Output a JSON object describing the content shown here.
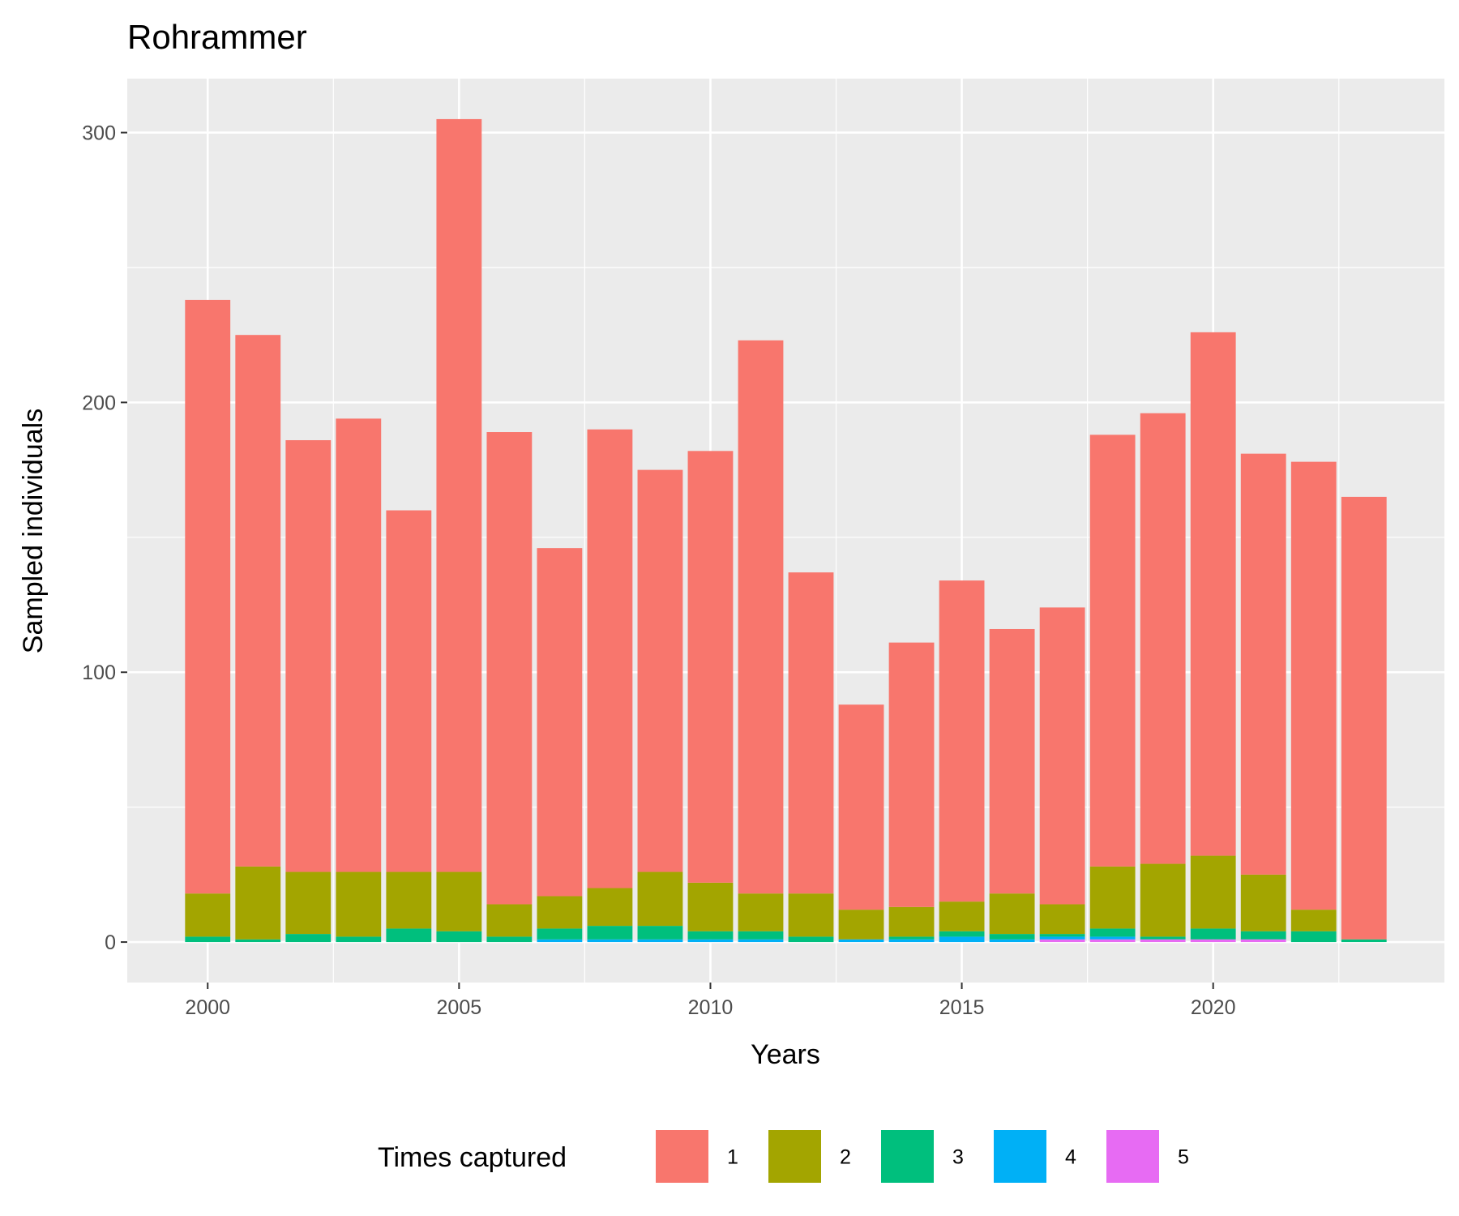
{
  "chart_data": {
    "type": "bar",
    "stacked": true,
    "title": "Rohrammer",
    "xlabel": "Years",
    "ylabel": "Sampled individuals",
    "xlim": [
      1998.4,
      2024.6
    ],
    "ylim": [
      -15,
      320
    ],
    "x_ticks": [
      2000,
      2005,
      2010,
      2015,
      2020
    ],
    "y_ticks": [
      0,
      100,
      200,
      300
    ],
    "grid": true,
    "legend_position": "bottom",
    "legend_title": "Times captured",
    "x": [
      2000,
      2001,
      2002,
      2003,
      2004,
      2005,
      2006,
      2007,
      2008,
      2009,
      2010,
      2011,
      2012,
      2013,
      2014,
      2015,
      2016,
      2017,
      2018,
      2019,
      2020,
      2021,
      2022,
      2023
    ],
    "series": [
      {
        "name": "1",
        "color": "#F8766D",
        "values": [
          220,
          197,
          160,
          168,
          134,
          279,
          175,
          129,
          170,
          149,
          160,
          205,
          119,
          76,
          98,
          119,
          98,
          110,
          160,
          167,
          194,
          156,
          166,
          164
        ]
      },
      {
        "name": "2",
        "color": "#A3A500",
        "values": [
          16,
          27,
          23,
          24,
          21,
          22,
          12,
          12,
          14,
          20,
          18,
          14,
          16,
          11,
          11,
          11,
          15,
          11,
          23,
          27,
          27,
          21,
          8,
          0
        ]
      },
      {
        "name": "3",
        "color": "#00BF7D",
        "values": [
          2,
          1,
          3,
          2,
          5,
          4,
          2,
          4,
          5,
          5,
          3,
          3,
          2,
          0,
          1,
          2,
          2,
          1,
          3,
          1,
          4,
          3,
          4,
          1
        ]
      },
      {
        "name": "4",
        "color": "#00B0F6",
        "values": [
          0,
          0,
          0,
          0,
          0,
          0,
          0,
          1,
          1,
          1,
          1,
          1,
          0,
          1,
          1,
          2,
          1,
          1,
          1,
          0,
          0,
          0,
          0,
          0
        ]
      },
      {
        "name": "5",
        "color": "#E76BF3",
        "values": [
          0,
          0,
          0,
          0,
          0,
          0,
          0,
          0,
          0,
          0,
          0,
          0,
          0,
          0,
          0,
          0,
          0,
          1,
          1,
          1,
          1,
          1,
          0,
          0
        ]
      }
    ]
  }
}
